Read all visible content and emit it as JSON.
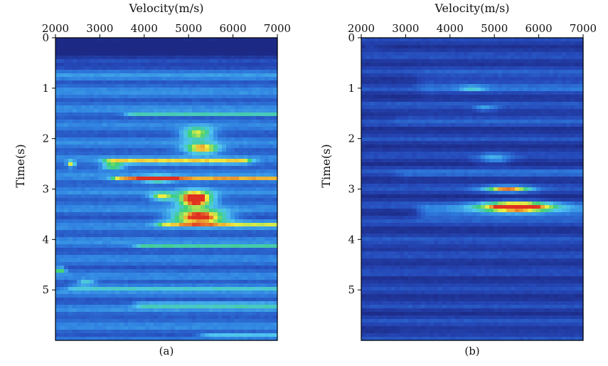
{
  "figure": {
    "colors": {
      "background": "#ffffff",
      "axis": "#000000",
      "colormap": [
        "#1c2a86",
        "#2548b8",
        "#2f7fe0",
        "#4fc6f0",
        "#3fd078",
        "#f0f040",
        "#e03020"
      ]
    }
  },
  "chart_data": [
    {
      "type": "heatmap",
      "panel": "(a)",
      "title": "",
      "xlabel": "Velocity(m/s)",
      "ylabel": "Time(s)",
      "xlim": [
        2000,
        7000
      ],
      "ylim": [
        0,
        6
      ],
      "y_inverted": true,
      "xticks": [
        2000,
        3000,
        4000,
        5000,
        6000,
        7000
      ],
      "yticks": [
        0,
        1,
        2,
        3,
        4,
        5
      ],
      "background_value": 0.3,
      "bands": [
        {
          "t": 0.2,
          "v_from": 2000,
          "v_to": 7000,
          "width": 0.25,
          "amp": -0.5
        },
        {
          "t": 1.5,
          "v_from": 3800,
          "v_to": 7000,
          "width": 0.03,
          "amp": 0.45
        },
        {
          "t": 2.45,
          "v_from": 3300,
          "v_to": 6200,
          "width": 0.05,
          "amp": 0.55
        },
        {
          "t": 2.8,
          "v_from": 3500,
          "v_to": 7000,
          "width": 0.04,
          "amp": 0.6
        },
        {
          "t": 3.7,
          "v_from": 4500,
          "v_to": 7000,
          "width": 0.05,
          "amp": 0.45
        },
        {
          "t": 4.15,
          "v_from": 4000,
          "v_to": 7000,
          "width": 0.03,
          "amp": 0.5
        },
        {
          "t": 4.95,
          "v_from": 2500,
          "v_to": 7000,
          "width": 0.04,
          "amp": 0.35
        },
        {
          "t": 5.3,
          "v_from": 4000,
          "v_to": 7000,
          "width": 0.06,
          "amp": 0.3
        },
        {
          "t": 5.9,
          "v_from": 5500,
          "v_to": 7000,
          "width": 0.04,
          "amp": 0.3
        }
      ],
      "peaks": [
        {
          "v": 5200,
          "t": 1.9,
          "sv": 350,
          "st": 0.12,
          "amp": 0.6
        },
        {
          "v": 5300,
          "t": 2.2,
          "sv": 400,
          "st": 0.1,
          "amp": 0.7
        },
        {
          "v": 5150,
          "t": 3.2,
          "sv": 380,
          "st": 0.15,
          "amp": 1.0
        },
        {
          "v": 5250,
          "t": 3.55,
          "sv": 600,
          "st": 0.12,
          "amp": 0.9
        },
        {
          "v": 4400,
          "t": 3.15,
          "sv": 250,
          "st": 0.08,
          "amp": 0.55
        },
        {
          "v": 4300,
          "t": 2.8,
          "sv": 350,
          "st": 0.07,
          "amp": 0.5
        },
        {
          "v": 3300,
          "t": 2.55,
          "sv": 250,
          "st": 0.06,
          "amp": 0.5
        },
        {
          "v": 2350,
          "t": 2.5,
          "sv": 90,
          "st": 0.06,
          "amp": 0.55
        },
        {
          "v": 2100,
          "t": 4.6,
          "sv": 120,
          "st": 0.05,
          "amp": 0.6
        },
        {
          "v": 2700,
          "t": 4.85,
          "sv": 200,
          "st": 0.05,
          "amp": 0.35
        }
      ]
    },
    {
      "type": "heatmap",
      "panel": "(b)",
      "title": "",
      "xlabel": "Velocity(m/s)",
      "ylabel": "Time(s)",
      "xlim": [
        2000,
        7000
      ],
      "ylim": [
        0,
        6
      ],
      "y_inverted": true,
      "xticks": [
        2000,
        3000,
        4000,
        5000,
        6000,
        7000
      ],
      "yticks": [
        0,
        1,
        2,
        3,
        4,
        5
      ],
      "background_value": 0.12,
      "bands": [
        {
          "t": 0.9,
          "v_from": 3500,
          "v_to": 7000,
          "width": 0.25,
          "amp": 0.12
        },
        {
          "t": 1.6,
          "v_from": 3000,
          "v_to": 7000,
          "width": 0.1,
          "amp": 0.08
        },
        {
          "t": 2.7,
          "v_from": 3000,
          "v_to": 7000,
          "width": 0.08,
          "amp": 0.12
        },
        {
          "t": 3.45,
          "v_from": 3500,
          "v_to": 7000,
          "width": 0.12,
          "amp": 0.3
        },
        {
          "t": 4.1,
          "v_from": 2000,
          "v_to": 7000,
          "width": 0.05,
          "amp": 0.12
        },
        {
          "t": 5.8,
          "v_from": 3000,
          "v_to": 7000,
          "width": 0.06,
          "amp": 0.06
        }
      ],
      "peaks": [
        {
          "v": 4500,
          "t": 1.0,
          "sv": 300,
          "st": 0.05,
          "amp": 0.3
        },
        {
          "v": 4800,
          "t": 1.4,
          "sv": 250,
          "st": 0.05,
          "amp": 0.28
        },
        {
          "v": 5000,
          "t": 2.4,
          "sv": 400,
          "st": 0.1,
          "amp": 0.3
        },
        {
          "v": 5300,
          "t": 3.0,
          "sv": 550,
          "st": 0.06,
          "amp": 0.75
        },
        {
          "v": 5500,
          "t": 3.35,
          "sv": 800,
          "st": 0.1,
          "amp": 0.95
        },
        {
          "v": 2200,
          "t": 0.2,
          "sv": 120,
          "st": 0.04,
          "amp": 0.15
        }
      ]
    }
  ]
}
